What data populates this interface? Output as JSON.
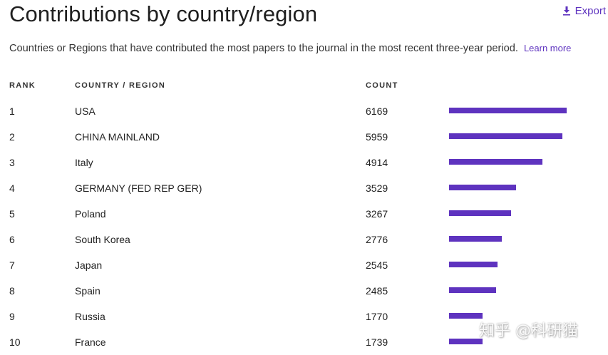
{
  "header": {
    "title": "Contributions by country/region",
    "export_label": "Export",
    "export_icon": "download-icon",
    "subtitle": "Countries or Regions that have contributed the most papers to the journal in the most recent three-year period.",
    "learn_more": "Learn more"
  },
  "table": {
    "columns": {
      "rank": "RANK",
      "country": "COUNTRY / REGION",
      "count": "COUNT"
    },
    "rows": [
      {
        "rank": "1",
        "country": "USA",
        "count": "6169"
      },
      {
        "rank": "2",
        "country": "CHINA MAINLAND",
        "count": "5959"
      },
      {
        "rank": "3",
        "country": "Italy",
        "count": "4914"
      },
      {
        "rank": "4",
        "country": "GERMANY (FED REP GER)",
        "count": "3529"
      },
      {
        "rank": "5",
        "country": "Poland",
        "count": "3267"
      },
      {
        "rank": "6",
        "country": "South Korea",
        "count": "2776"
      },
      {
        "rank": "7",
        "country": "Japan",
        "count": "2545"
      },
      {
        "rank": "8",
        "country": "Spain",
        "count": "2485"
      },
      {
        "rank": "9",
        "country": "Russia",
        "count": "1770"
      },
      {
        "rank": "10",
        "country": "France",
        "count": "1739"
      }
    ]
  },
  "colors": {
    "accent": "#5e33bf",
    "bar": "#5e33bf"
  },
  "watermark": "知乎 @科研猫"
}
